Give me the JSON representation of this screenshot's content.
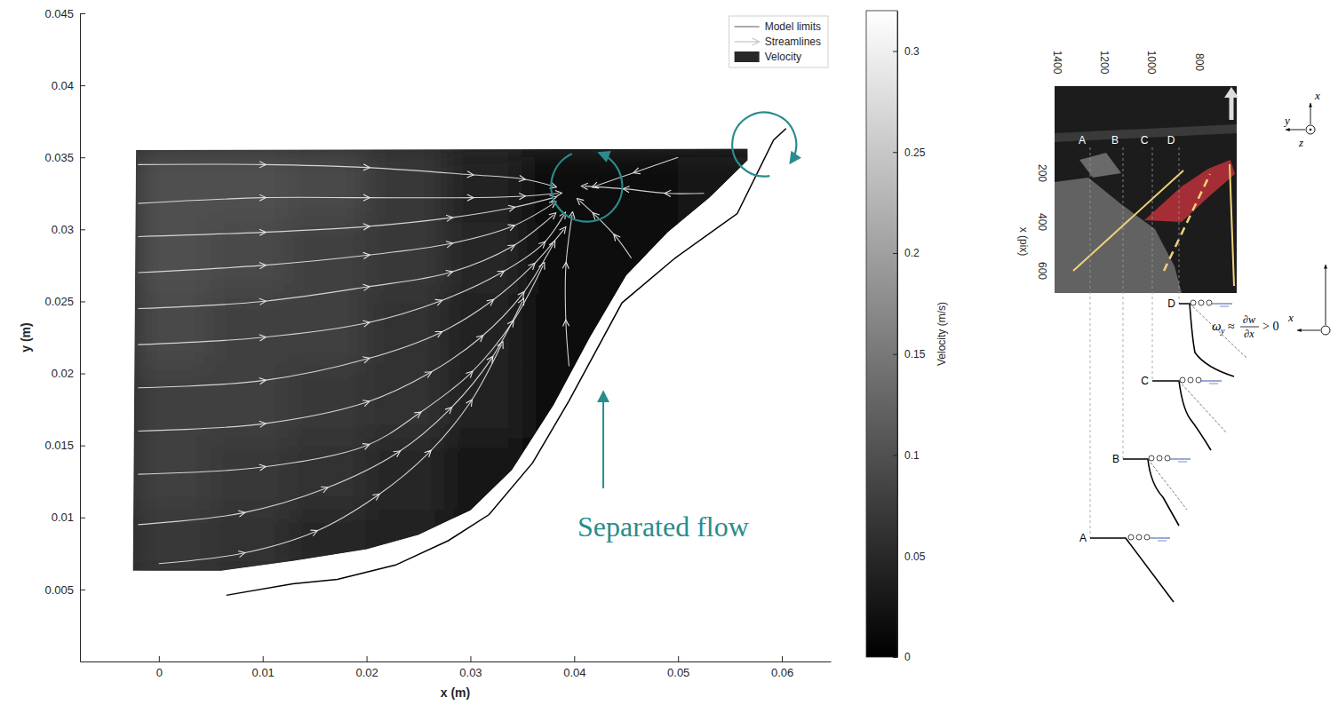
{
  "chart_data": {
    "type": "streamline",
    "xlabel": "x (m)",
    "ylabel": "y (m)",
    "xlim": [
      -0.0076,
      0.0647
    ],
    "ylim": [
      0,
      0.045
    ],
    "xticks": [
      0,
      0.01,
      0.02,
      0.03,
      0.04,
      0.05,
      0.06
    ],
    "yticks": [
      0.005,
      0.01,
      0.015,
      0.02,
      0.025,
      0.03,
      0.035,
      0.04,
      0.045
    ],
    "legend": "upper right",
    "series": [
      {
        "name": "Model limits",
        "type": "line",
        "color": "#000000",
        "x": [
          0.0065,
          0.0129,
          0.0172,
          0.0228,
          0.0279,
          0.0318,
          0.036,
          0.0395,
          0.0446,
          0.0497,
          0.0557,
          0.0592,
          0.0604
        ],
        "y": [
          0.0046,
          0.0054,
          0.0057,
          0.0067,
          0.0084,
          0.0102,
          0.0138,
          0.0181,
          0.0249,
          0.028,
          0.0311,
          0.0362,
          0.037
        ]
      },
      {
        "name": "Streamlines",
        "type": "streamline",
        "color": "#e6e6e6",
        "lines": [
          {
            "x": [
              -0.002,
              0.01,
              0.02,
              0.03,
              0.035,
              0.038
            ],
            "y": [
              0.0345,
              0.0345,
              0.0343,
              0.0338,
              0.0335,
              0.033
            ]
          },
          {
            "x": [
              -0.002,
              0.01,
              0.02,
              0.03,
              0.035,
              0.0385
            ],
            "y": [
              0.0318,
              0.0322,
              0.0322,
              0.0322,
              0.0323,
              0.0325
            ]
          },
          {
            "x": [
              -0.002,
              0.01,
              0.02,
              0.028,
              0.034,
              0.038
            ],
            "y": [
              0.0295,
              0.0298,
              0.0302,
              0.0308,
              0.0315,
              0.0322
            ]
          },
          {
            "x": [
              -0.002,
              0.01,
              0.02,
              0.028,
              0.034,
              0.038
            ],
            "y": [
              0.027,
              0.0275,
              0.0282,
              0.029,
              0.0302,
              0.0318
            ]
          },
          {
            "x": [
              -0.002,
              0.01,
              0.02,
              0.028,
              0.034,
              0.038
            ],
            "y": [
              0.0245,
              0.025,
              0.026,
              0.027,
              0.0288,
              0.031
            ]
          },
          {
            "x": [
              -0.002,
              0.01,
              0.02,
              0.027,
              0.033,
              0.037,
              0.039
            ],
            "y": [
              0.022,
              0.0225,
              0.0235,
              0.025,
              0.027,
              0.029,
              0.031
            ]
          },
          {
            "x": [
              -0.002,
              0.01,
              0.02,
              0.027,
              0.032,
              0.036,
              0.039
            ],
            "y": [
              0.019,
              0.0195,
              0.021,
              0.0228,
              0.025,
              0.0275,
              0.03
            ]
          },
          {
            "x": [
              -0.002,
              0.01,
              0.02,
              0.026,
              0.031,
              0.035,
              0.038
            ],
            "y": [
              0.016,
              0.0165,
              0.018,
              0.02,
              0.0225,
              0.0255,
              0.029
            ]
          },
          {
            "x": [
              -0.002,
              0.01,
              0.02,
              0.025,
              0.03,
              0.034,
              0.037
            ],
            "y": [
              0.013,
              0.0135,
              0.015,
              0.0172,
              0.02,
              0.0235,
              0.0275
            ]
          },
          {
            "x": [
              -0.002,
              0.008,
              0.016,
              0.023,
              0.028,
              0.032,
              0.035
            ],
            "y": [
              0.0095,
              0.0103,
              0.012,
              0.0145,
              0.0175,
              0.021,
              0.025
            ]
          },
          {
            "x": [
              0,
              0.008,
              0.015,
              0.021,
              0.026,
              0.03,
              0.033
            ],
            "y": [
              0.0068,
              0.0075,
              0.009,
              0.0115,
              0.0145,
              0.018,
              0.022
            ]
          },
          {
            "x": [
              0.0395,
              0.0392,
              0.0392,
              0.0398
            ],
            "y": [
              0.0205,
              0.0235,
              0.0275,
              0.031
            ]
          },
          {
            "x": [
              0.0455,
              0.044,
              0.042,
              0.0405
            ],
            "y": [
              0.028,
              0.0295,
              0.031,
              0.032
            ]
          },
          {
            "x": [
              0.0525,
              0.049,
              0.045,
              0.041
            ],
            "y": [
              0.0325,
              0.0325,
              0.0328,
              0.033
            ]
          },
          {
            "x": [
              0.05,
              0.046,
              0.042
            ],
            "y": [
              0.035,
              0.034,
              0.033
            ]
          }
        ]
      },
      {
        "name": "Velocity",
        "type": "heatmap",
        "x_edges": [
          -0.0025,
          0.005,
          0.0125,
          0.02,
          0.0275,
          0.035,
          0.0425,
          0.05,
          0.0575
        ],
        "y_edges": [
          0.0055,
          0.0105,
          0.0155,
          0.0205,
          0.0255,
          0.0305,
          0.0357
        ],
        "values": [
          [
            0.07,
            0.06,
            0.05,
            0.04,
            0.03,
            0.02,
            0.02,
            0.02
          ],
          [
            0.08,
            0.07,
            0.06,
            0.05,
            0.03,
            0.02,
            0.02,
            0.02
          ],
          [
            0.08,
            0.08,
            0.07,
            0.06,
            0.04,
            0.02,
            0.02,
            0.02
          ],
          [
            0.09,
            0.08,
            0.08,
            0.06,
            0.04,
            0.02,
            0.02,
            0.02
          ],
          [
            0.1,
            0.09,
            0.08,
            0.07,
            0.05,
            0.02,
            0.02,
            0.03
          ],
          [
            0.1,
            0.1,
            0.09,
            0.07,
            0.04,
            0.01,
            0.02,
            0.03
          ]
        ],
        "outline": {
          "x": [
            -0.0022,
            0.0567,
            0.0567,
            0.053,
            0.049,
            0.045,
            0.0415,
            0.038,
            0.034,
            0.03,
            0.025,
            0.02,
            0.013,
            0.006,
            -0.0025
          ],
          "y": [
            0.0355,
            0.0356,
            0.0348,
            0.0322,
            0.0298,
            0.0268,
            0.0225,
            0.0178,
            0.0133,
            0.0105,
            0.0088,
            0.0078,
            0.007,
            0.0063,
            0.0063
          ]
        }
      }
    ],
    "colorbar": {
      "label": "Velocity (m/s)",
      "lim": [
        0,
        0.32
      ],
      "ticks": [
        0,
        0.05,
        0.1,
        0.15,
        0.2,
        0.25,
        0.3
      ]
    },
    "annotations": [
      {
        "text": "Separated flow",
        "x": 0.0428,
        "y": 0.0188,
        "color": "#2a8c8c"
      }
    ],
    "vortices": [
      {
        "x": 0.0412,
        "y": 0.033,
        "color": "#2a8c8c"
      },
      {
        "x": 0.0583,
        "y": 0.0359,
        "color": "#2a8c8c"
      }
    ]
  },
  "diagram": {
    "x_ticks": [
      1400,
      1200,
      1000,
      800
    ],
    "y_ticks": [
      200,
      400,
      600
    ],
    "y_label": "x (pix)",
    "sections": [
      "A",
      "B",
      "C",
      "D"
    ],
    "axes": [
      "x",
      "y",
      "z"
    ],
    "vorticity": [
      "ω",
      "y",
      "≈",
      "∂w",
      "∂x",
      "> 0"
    ]
  }
}
